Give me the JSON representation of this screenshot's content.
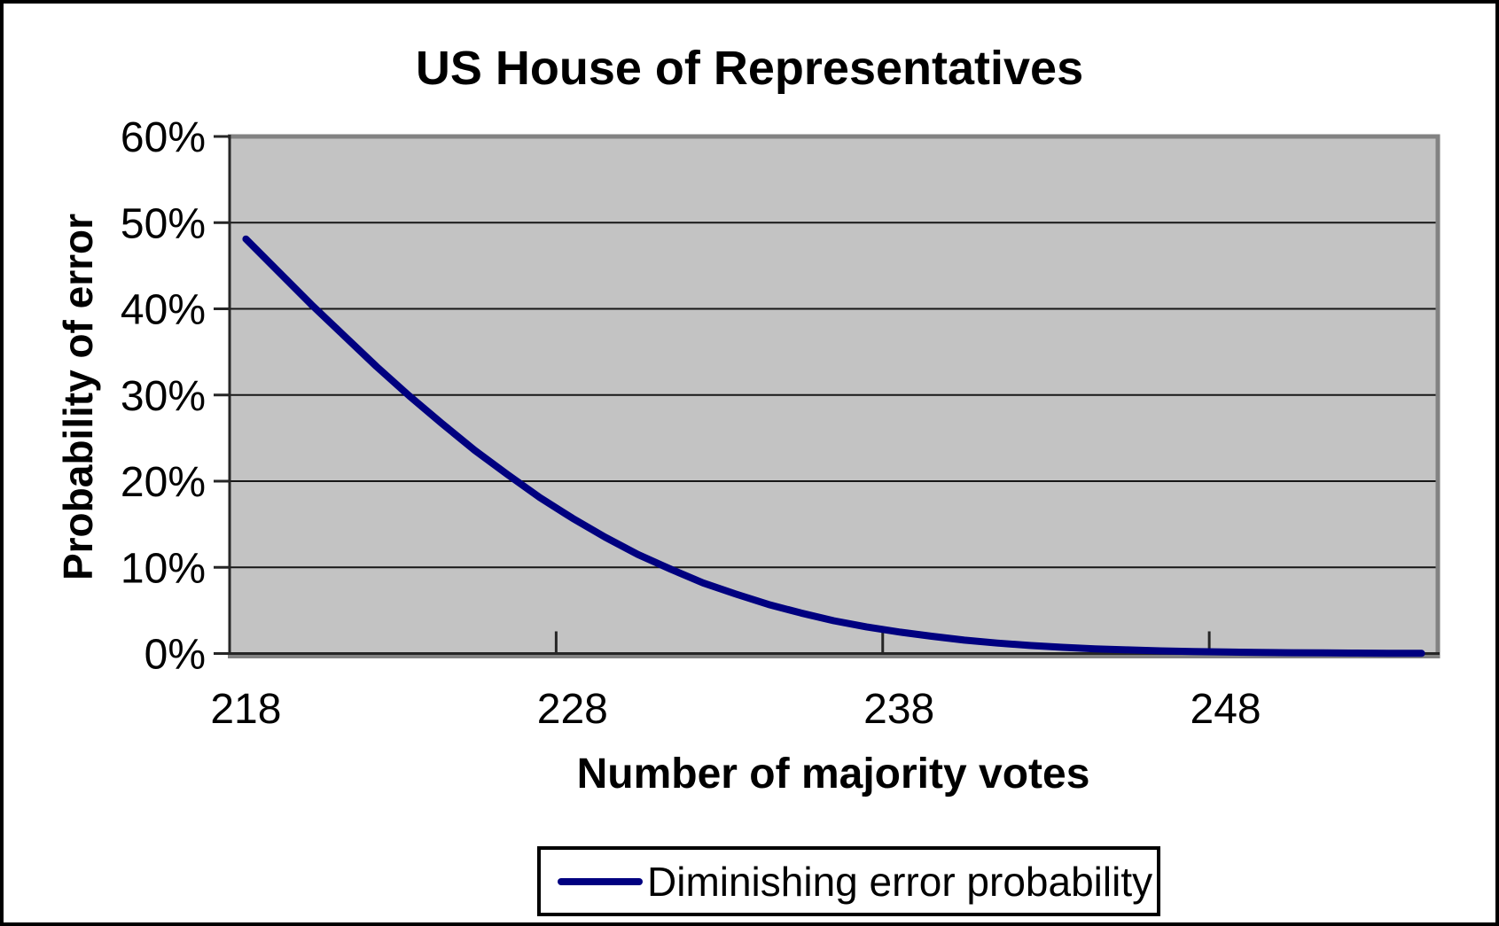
{
  "chart_data": {
    "type": "line",
    "title": "US House of Representatives",
    "xlabel": "Number of majority votes",
    "ylabel": "Probability of error",
    "grid": "horizontal",
    "legend_position": "bottom-center",
    "legend": {
      "entries": [
        {
          "label": "Diminishing error probability",
          "color": "#000080"
        }
      ]
    },
    "ylim": [
      0,
      60
    ],
    "y_tick_format": "percent",
    "y_ticks": [
      {
        "value": 0,
        "label": "0%"
      },
      {
        "value": 10,
        "label": "10%"
      },
      {
        "value": 20,
        "label": "20%"
      },
      {
        "value": 30,
        "label": "30%"
      },
      {
        "value": 40,
        "label": "40%"
      },
      {
        "value": 50,
        "label": "50%"
      },
      {
        "value": 60,
        "label": "60%"
      }
    ],
    "x_tick_labels": [
      "218",
      "228",
      "238",
      "248"
    ],
    "x_boundary_ticks_at": [
      228,
      238,
      248
    ],
    "series": [
      {
        "name": "Diminishing error probability",
        "color": "#000080",
        "x": [
          218,
          219,
          220,
          221,
          222,
          223,
          224,
          225,
          226,
          227,
          228,
          229,
          230,
          231,
          232,
          233,
          234,
          235,
          236,
          237,
          238,
          239,
          240,
          241,
          242,
          243,
          244,
          245,
          246,
          247,
          248,
          249,
          250,
          251,
          252,
          253,
          254
        ],
        "y_percent": [
          48.1,
          44.3,
          40.5,
          36.9,
          33.3,
          29.9,
          26.7,
          23.6,
          20.8,
          18.1,
          15.7,
          13.5,
          11.5,
          9.8,
          8.2,
          6.9,
          5.7,
          4.7,
          3.8,
          3.1,
          2.5,
          2.0,
          1.55,
          1.21,
          0.94,
          0.72,
          0.55,
          0.42,
          0.31,
          0.23,
          0.17,
          0.13,
          0.09,
          0.07,
          0.05,
          0.03,
          0.02
        ]
      }
    ]
  },
  "colors": {
    "background": "#FFFFFF",
    "frame_border": "#000000",
    "plot_background": "#C3C3C3",
    "plot_border": "#828282",
    "axis": "#262626",
    "gridline": "#161616",
    "text": "#000000",
    "line": "#000080",
    "legend_border": "#000000"
  }
}
